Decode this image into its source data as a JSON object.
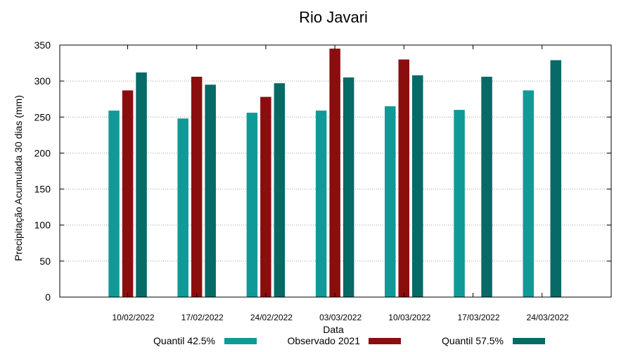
{
  "chart_data": {
    "type": "bar",
    "title": "Rio Javari",
    "xlabel": "Data",
    "ylabel": "Precipitação Acumulada 30 dias (mm)",
    "ylim": [
      0,
      350
    ],
    "yticks": [
      0,
      50,
      100,
      150,
      200,
      250,
      300,
      350
    ],
    "grid": true,
    "legend_position": "bottom",
    "categories": [
      "10/02/2022",
      "17/02/2022",
      "24/02/2022",
      "03/03/2022",
      "10/03/2022",
      "17/03/2022",
      "24/03/2022"
    ],
    "series": [
      {
        "name": "Quantil 42.5%",
        "color": "#0f9a98",
        "values": [
          259,
          248,
          256,
          259,
          265,
          260,
          287
        ]
      },
      {
        "name": "Observado 2021",
        "color": "#8b0e0e",
        "values": [
          287,
          306,
          278,
          345,
          330,
          null,
          null
        ]
      },
      {
        "name": "Quantil 57.5%",
        "color": "#066a67",
        "values": [
          312,
          295,
          297,
          305,
          308,
          306,
          329
        ]
      }
    ]
  }
}
